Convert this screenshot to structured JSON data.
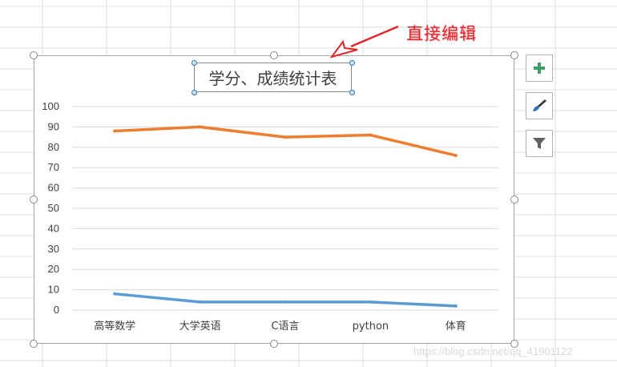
{
  "annotation": {
    "text": "直接编辑"
  },
  "watermark": {
    "text": "https://blog.csdn.net/qq_41901122"
  },
  "side_buttons": {
    "add": "plus-icon",
    "style": "brush-icon",
    "filter": "filter-icon"
  },
  "colors": {
    "series_orange": "#ed7d31",
    "series_blue": "#5b9bd5",
    "annotation": "#e0262b",
    "selection_handle": "#2e75b6"
  },
  "chart_data": {
    "type": "line",
    "title": "学分、成绩统计表",
    "categories": [
      "高等数学",
      "大学英语",
      "C语言",
      "python",
      "体育"
    ],
    "ylim": [
      0,
      100
    ],
    "yticks": [
      "0",
      "10",
      "20",
      "30",
      "40",
      "50",
      "60",
      "70",
      "80",
      "90",
      "100"
    ],
    "grid": true,
    "legend": "none",
    "series": [
      {
        "color": "#ed7d31",
        "values": [
          88,
          90,
          85,
          86,
          76
        ]
      },
      {
        "color": "#5b9bd5",
        "values": [
          8,
          4,
          4,
          4,
          2
        ]
      }
    ]
  }
}
